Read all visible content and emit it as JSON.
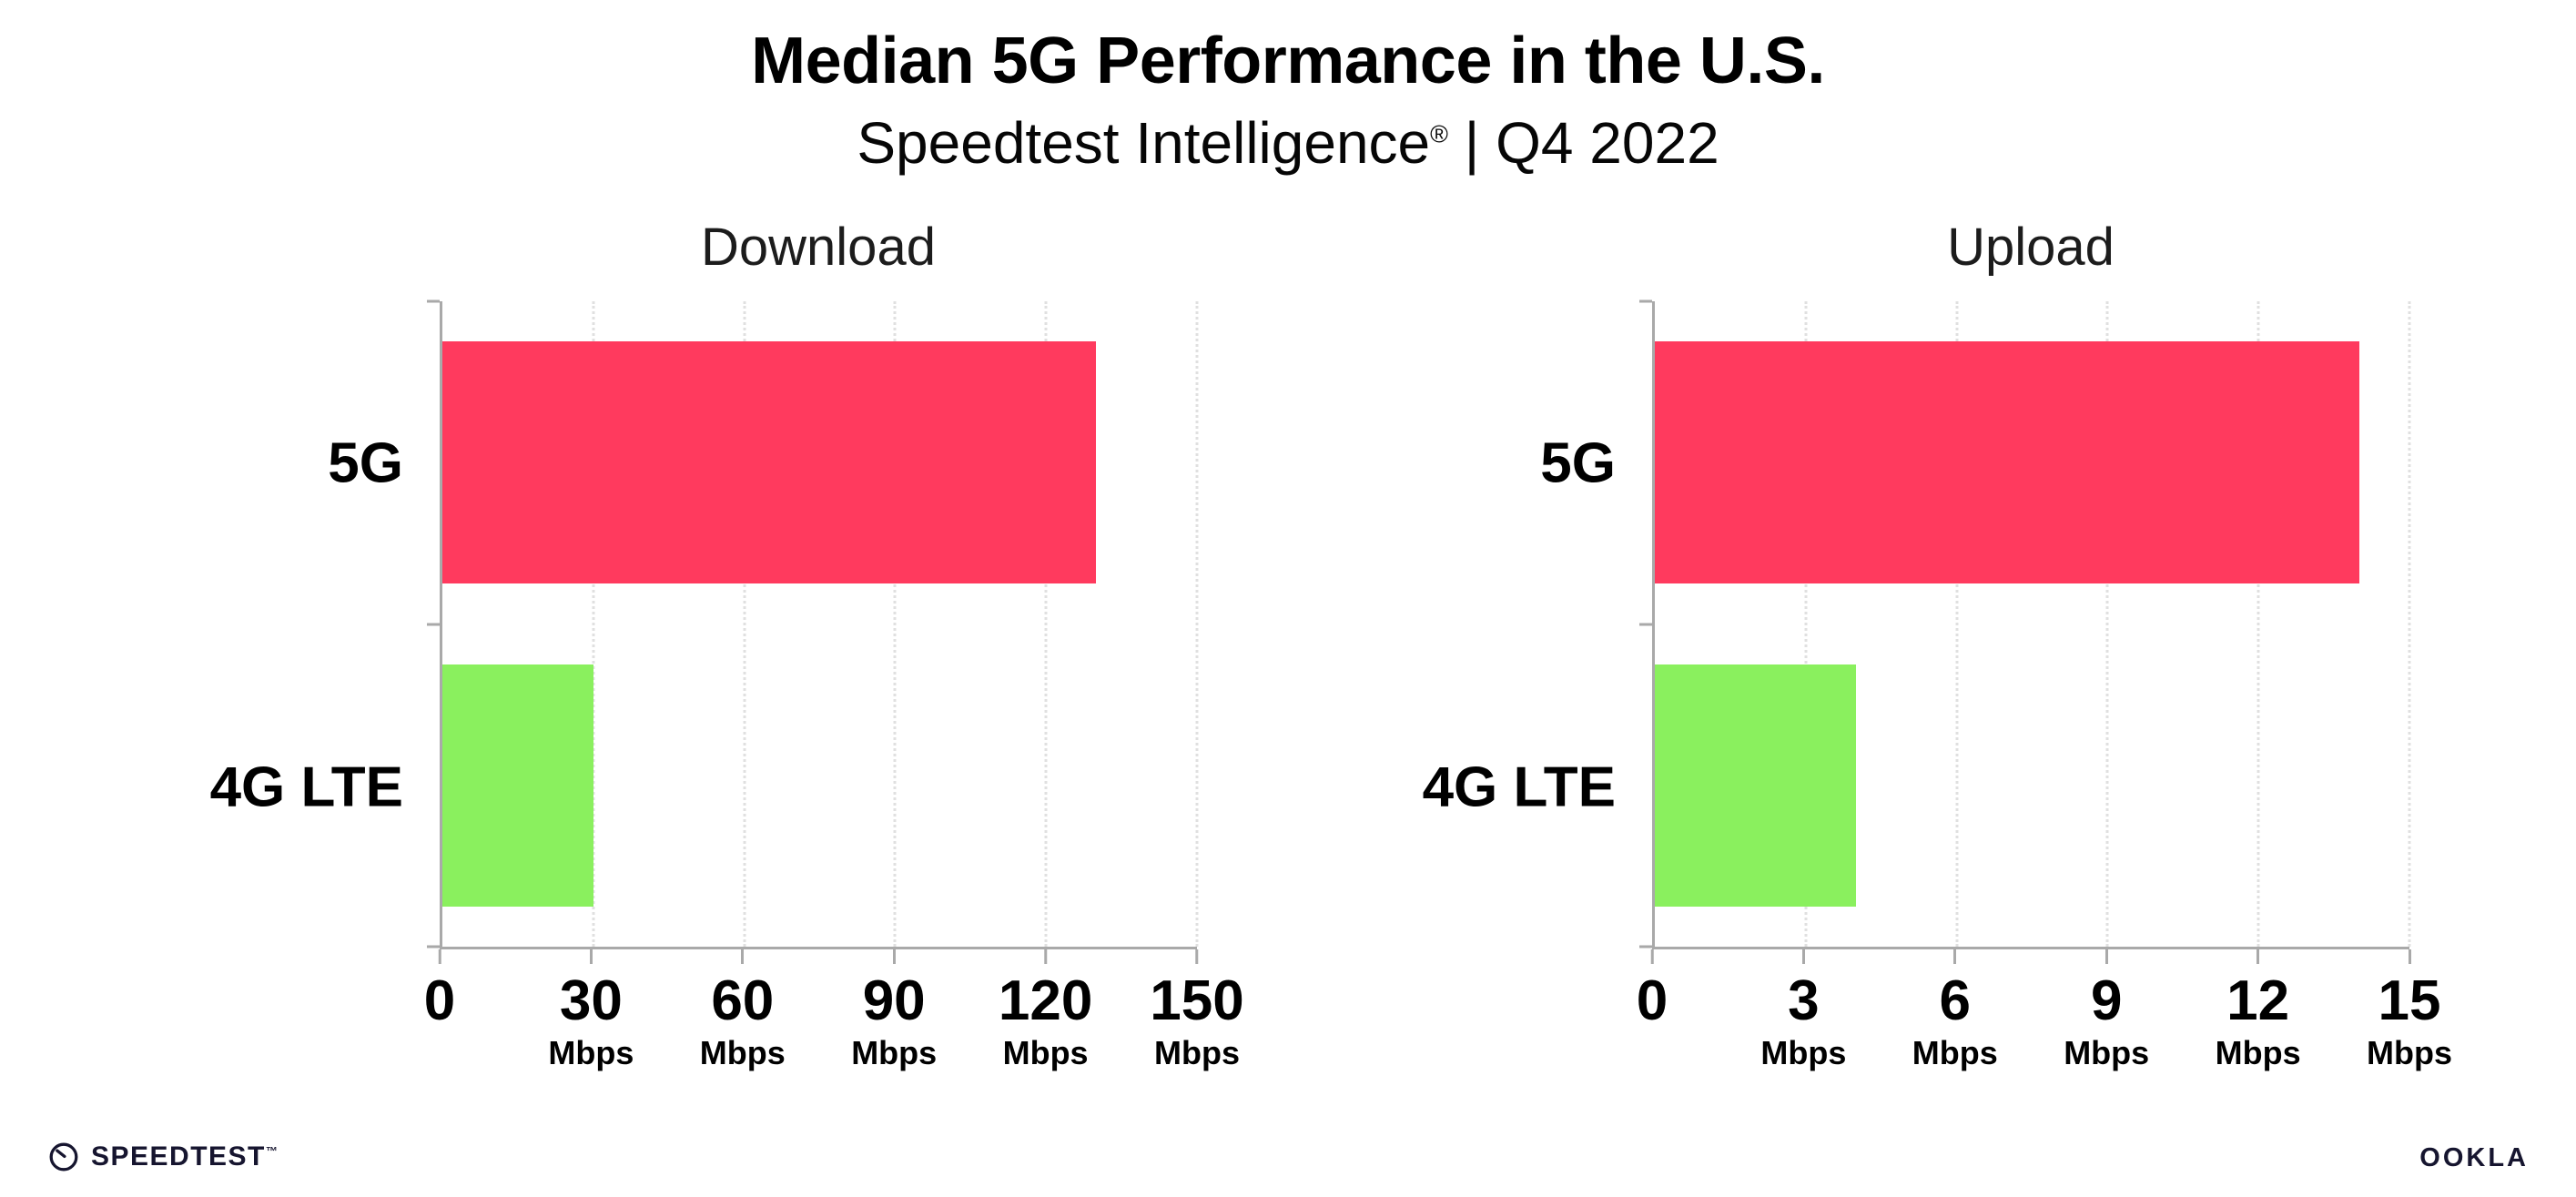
{
  "header": {
    "title": "Median 5G Performance in the U.S.",
    "subtitle_brand": "Speedtest Intelligence",
    "subtitle_reg": "®",
    "subtitle_rest": " | Q4 2022"
  },
  "chart_data": [
    {
      "type": "bar",
      "orientation": "horizontal",
      "title": "Download",
      "categories": [
        "5G",
        "4G LTE"
      ],
      "values": [
        130,
        30
      ],
      "unit": "Mbps",
      "xlim": [
        0,
        150
      ],
      "xticks": [
        0,
        30,
        60,
        90,
        120,
        150
      ],
      "bar_colors": [
        "#ff3a5e",
        "#8af05e"
      ],
      "grid": "dotted-vertical",
      "legend": "none"
    },
    {
      "type": "bar",
      "orientation": "horizontal",
      "title": "Upload",
      "categories": [
        "5G",
        "4G LTE"
      ],
      "values": [
        14,
        4
      ],
      "unit": "Mbps",
      "xlim": [
        0,
        15
      ],
      "xticks": [
        0,
        3,
        6,
        9,
        12,
        15
      ],
      "bar_colors": [
        "#ff3a5e",
        "#8af05e"
      ],
      "grid": "dotted-vertical",
      "legend": "none"
    }
  ],
  "footer": {
    "speedtest_label": "SPEEDTEST",
    "speedtest_tm": "™",
    "ookla_label": "OOKLA"
  }
}
